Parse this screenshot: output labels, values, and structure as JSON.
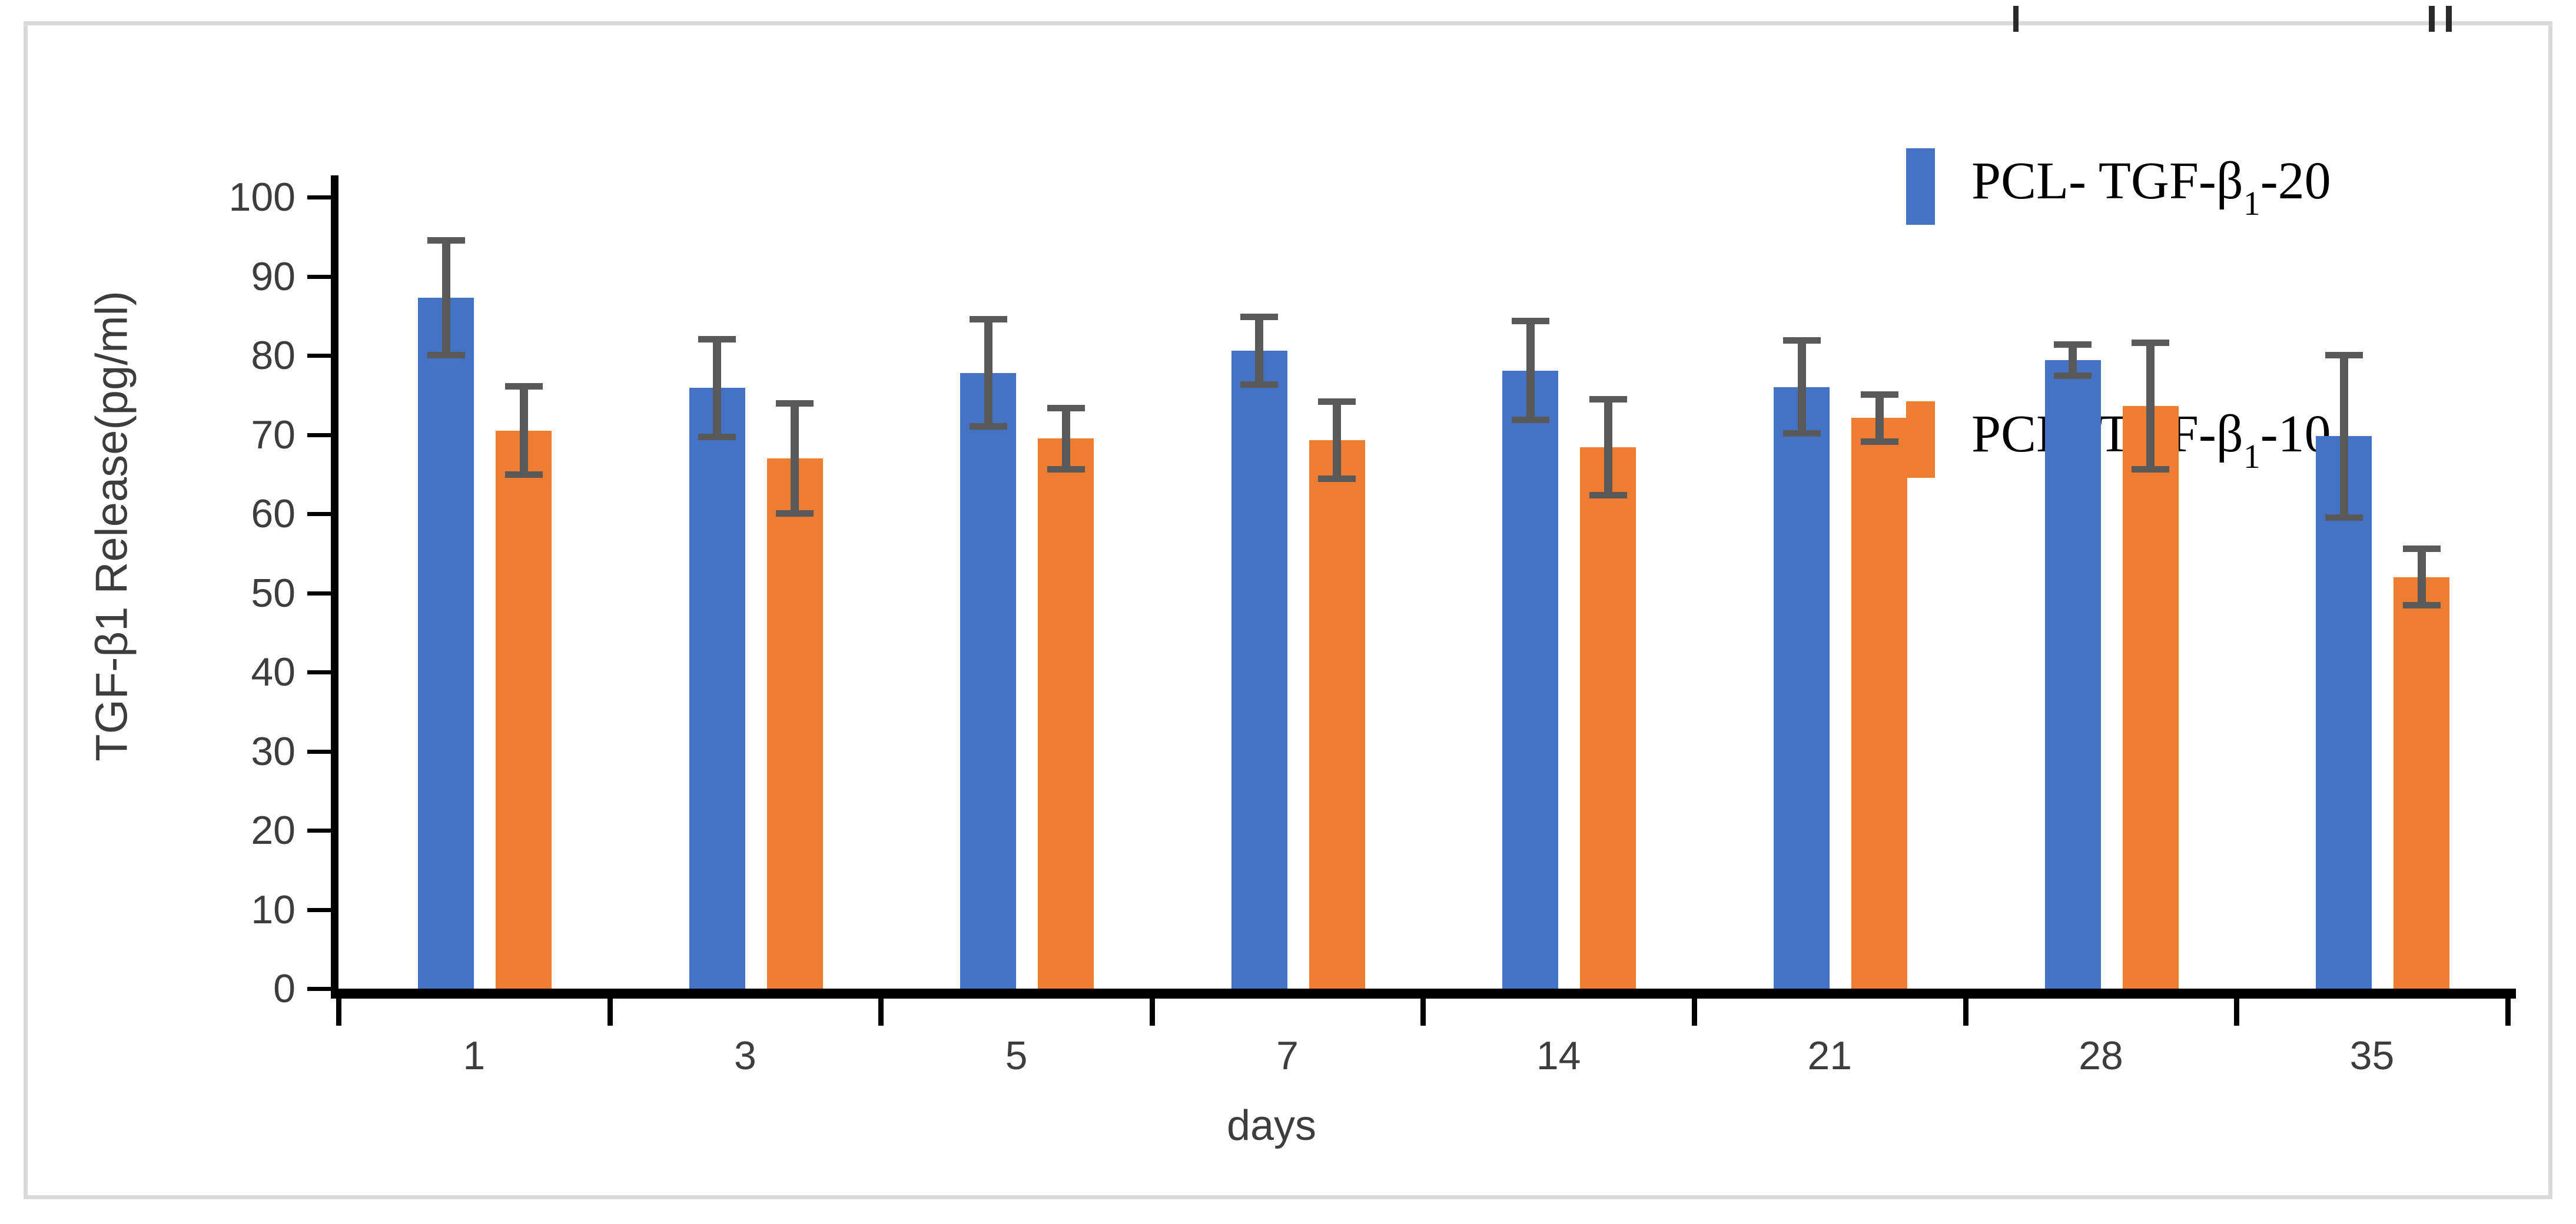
{
  "chart_data": {
    "type": "bar",
    "title": "",
    "xlabel": "days",
    "ylabel": "TGF-β1 Release(pg/ml)",
    "categories": [
      "1",
      "3",
      "5",
      "7",
      "14",
      "21",
      "28",
      "35"
    ],
    "series": [
      {
        "name": "PCL- TGF-β1-20",
        "color": "#4472C4",
        "values": [
          87.3,
          75.9,
          77.8,
          80.6,
          78.1,
          76.0,
          79.4,
          69.8
        ],
        "errors": [
          7.3,
          6.2,
          6.8,
          4.3,
          6.3,
          5.9,
          2.0,
          10.3
        ]
      },
      {
        "name": "PCL- TGF-β1-10",
        "color": "#ED7D31",
        "values": [
          70.5,
          67.0,
          69.5,
          69.3,
          68.4,
          72.1,
          73.6,
          52.0
        ],
        "errors": [
          5.6,
          7.0,
          3.9,
          4.9,
          6.1,
          3.0,
          8.0,
          3.6
        ]
      }
    ],
    "ylim": [
      0,
      100
    ],
    "ytick_step": 10,
    "grid": false,
    "legend_position": "top-right",
    "error_bar_color": "#595959",
    "axis_color": "#000000",
    "tick_label_color": "#3d3d3d",
    "frame_color": "#d9d9d9"
  },
  "legend": {
    "items": [
      {
        "prefix": "PCL- TGF-β",
        "sub": "1",
        "suffix": "-20",
        "color": "#4472C4"
      },
      {
        "prefix": "PCL- TGF-β",
        "sub": "1",
        "suffix": "-10",
        "color": "#ED7D31"
      }
    ]
  }
}
